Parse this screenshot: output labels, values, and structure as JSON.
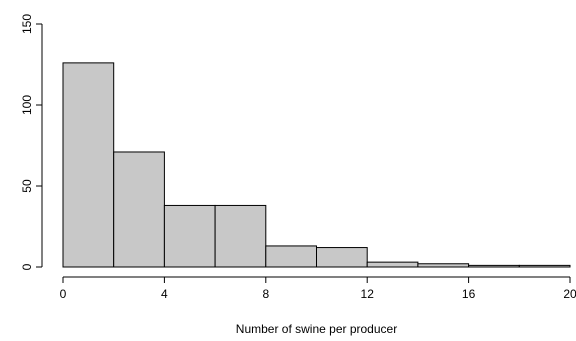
{
  "chart_data": {
    "type": "bar",
    "subtype": "histogram",
    "title": "",
    "xlabel": "Number of swine per producer",
    "ylabel": "",
    "bin_edges": [
      0,
      2,
      4,
      6,
      8,
      10,
      12,
      14,
      16,
      18,
      20
    ],
    "values": [
      126,
      71,
      38,
      38,
      13,
      12,
      3,
      2,
      1,
      1
    ],
    "xlim": [
      0,
      20
    ],
    "ylim": [
      0,
      150
    ],
    "xticks": [
      "0",
      "4",
      "8",
      "12",
      "16",
      "20"
    ],
    "yticks": [
      "0",
      "50",
      "100",
      "150"
    ],
    "grid": false,
    "bar_color": "#c8c8c8",
    "edge_color": "#000000"
  }
}
